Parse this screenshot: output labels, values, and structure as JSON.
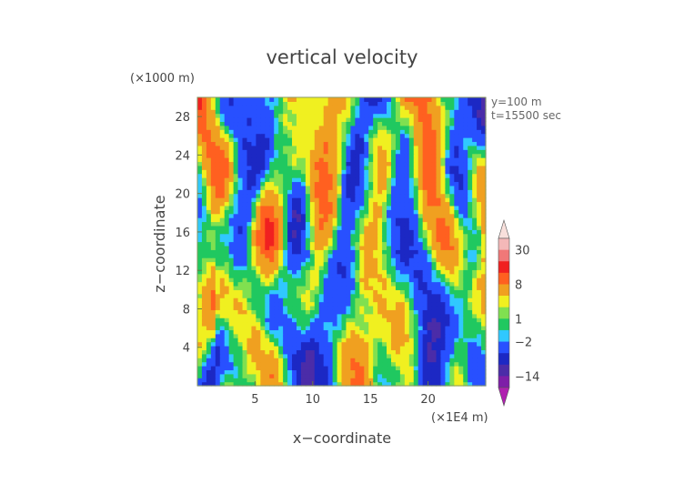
{
  "chart_data": {
    "type": "heatmap",
    "title": "vertical velocity",
    "xlabel": "x−coordinate",
    "ylabel": "z−coordinate",
    "x_unit_label": "(×1E4 m)",
    "y_unit_label": "(×1000 m)",
    "annotations": [
      "y=100 m",
      "t=15500 sec"
    ],
    "x_range": [
      0,
      25
    ],
    "y_range": [
      0,
      30
    ],
    "x_ticks": [
      {
        "value": 5,
        "label": "5"
      },
      {
        "value": 10,
        "label": "10"
      },
      {
        "value": 15,
        "label": "15"
      },
      {
        "value": 20,
        "label": "20"
      }
    ],
    "y_ticks": [
      {
        "value": 4,
        "label": "4"
      },
      {
        "value": 8,
        "label": "8"
      },
      {
        "value": 12,
        "label": "12"
      },
      {
        "value": 16,
        "label": "16"
      },
      {
        "value": 20,
        "label": "20"
      },
      {
        "value": 24,
        "label": "24"
      },
      {
        "value": 28,
        "label": "28"
      }
    ],
    "colorbar": {
      "position": "right",
      "levels": [
        -20,
        -14,
        -8,
        -5,
        -2,
        -1,
        1,
        2,
        4,
        8,
        12,
        20,
        30,
        40
      ],
      "colors": [
        "#b020b0",
        "#7e1ea8",
        "#4b2ca8",
        "#1c28c4",
        "#2850ff",
        "#30c8ff",
        "#20c860",
        "#80e050",
        "#f0f020",
        "#f0a020",
        "#ff6020",
        "#f02020",
        "#f07878",
        "#f4b8b8",
        "#f8e0dc"
      ],
      "tick_labels": [
        {
          "value": 30,
          "label": "30"
        },
        {
          "value": 8,
          "label": "8"
        },
        {
          "value": 1,
          "label": "1"
        },
        {
          "value": -2,
          "label": "−2"
        },
        {
          "value": -14,
          "label": "−14"
        }
      ]
    }
  }
}
